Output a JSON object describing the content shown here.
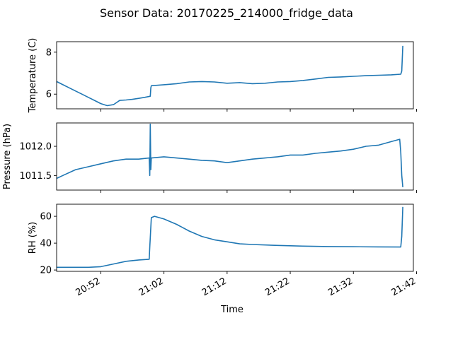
{
  "figure": {
    "title": "Sensor Data: 20170225_214000_fridge_data",
    "xlabel": "Time",
    "x_tick_labels": [
      "20:52",
      "21:02",
      "21:12",
      "21:22",
      "21:32",
      "21:42"
    ],
    "line_color": "#1f77b4"
  },
  "chart_data": [
    {
      "type": "line",
      "ylabel": "Temperature (C)",
      "ylim": [
        5.3,
        8.5
      ],
      "yticks": [
        6,
        8
      ],
      "ytick_labels": [
        "6",
        "8"
      ],
      "xlim": [
        "20:45:00",
        "21:41:30"
      ],
      "series": [
        {
          "x": [
            "20:45:00",
            "20:46:00",
            "20:47:00",
            "20:48:00",
            "20:49:00",
            "20:50:00",
            "20:51:00",
            "20:52:00",
            "20:53:00",
            "20:54:00",
            "20:54:30",
            "20:55:00",
            "20:56:00",
            "20:57:00",
            "20:58:00",
            "20:59:00",
            "20:59:50",
            "20:59:55",
            "21:00:00",
            "21:02:00",
            "21:04:00",
            "21:06:00",
            "21:08:00",
            "21:10:00",
            "21:12:00",
            "21:14:00",
            "21:16:00",
            "21:18:00",
            "21:20:00",
            "21:22:00",
            "21:24:00",
            "21:26:00",
            "21:28:00",
            "21:30:00",
            "21:32:00",
            "21:34:00",
            "21:36:00",
            "21:38:00",
            "21:39:30",
            "21:39:40",
            "21:39:50"
          ],
          "values": [
            6.6,
            6.45,
            6.3,
            6.15,
            6.0,
            5.85,
            5.7,
            5.55,
            5.45,
            5.5,
            5.6,
            5.7,
            5.72,
            5.75,
            5.8,
            5.85,
            5.9,
            6.3,
            6.4,
            6.45,
            6.5,
            6.58,
            6.6,
            6.58,
            6.52,
            6.55,
            6.5,
            6.52,
            6.58,
            6.6,
            6.65,
            6.72,
            6.8,
            6.82,
            6.85,
            6.88,
            6.9,
            6.92,
            6.95,
            7.1,
            8.3
          ]
        }
      ]
    },
    {
      "type": "line",
      "ylabel": "Pressure (hPa)",
      "ylim": [
        1011.25,
        1012.4
      ],
      "yticks": [
        1011.5,
        1012.0
      ],
      "ytick_labels": [
        "1011.5",
        "1012.0"
      ],
      "xlim": [
        "20:45:00",
        "21:41:30"
      ],
      "series": [
        {
          "x": [
            "20:45:00",
            "20:46:00",
            "20:48:00",
            "20:50:00",
            "20:52:00",
            "20:54:00",
            "20:56:00",
            "20:58:00",
            "20:59:40",
            "20:59:45",
            "20:59:50",
            "20:59:55",
            "21:00:00",
            "21:02:00",
            "21:04:00",
            "21:06:00",
            "21:08:00",
            "21:10:00",
            "21:12:00",
            "21:14:00",
            "21:16:00",
            "21:18:00",
            "21:20:00",
            "21:22:00",
            "21:24:00",
            "21:26:00",
            "21:28:00",
            "21:30:00",
            "21:32:00",
            "21:34:00",
            "21:36:00",
            "21:38:00",
            "21:39:20",
            "21:39:30",
            "21:39:40",
            "21:39:50"
          ],
          "values": [
            1011.45,
            1011.5,
            1011.6,
            1011.65,
            1011.7,
            1011.75,
            1011.78,
            1011.78,
            1011.8,
            1011.5,
            1012.38,
            1011.6,
            1011.8,
            1011.82,
            1011.8,
            1011.78,
            1011.76,
            1011.75,
            1011.72,
            1011.75,
            1011.78,
            1011.8,
            1011.82,
            1011.85,
            1011.85,
            1011.88,
            1011.9,
            1011.92,
            1011.95,
            1012.0,
            1012.02,
            1012.08,
            1012.12,
            1011.9,
            1011.5,
            1011.3
          ]
        }
      ]
    },
    {
      "type": "line",
      "ylabel": "RH (%)",
      "ylim": [
        19,
        69
      ],
      "yticks": [
        20,
        40,
        60
      ],
      "ytick_labels": [
        "20",
        "40",
        "60"
      ],
      "xlim": [
        "20:45:00",
        "21:41:30"
      ],
      "series": [
        {
          "x": [
            "20:45:00",
            "20:50:00",
            "20:52:00",
            "20:54:00",
            "20:56:00",
            "20:58:00",
            "20:59:40",
            "20:59:45",
            "21:00:00",
            "21:00:30",
            "21:02:00",
            "21:04:00",
            "21:06:00",
            "21:08:00",
            "21:10:00",
            "21:12:00",
            "21:14:00",
            "21:16:00",
            "21:20:00",
            "21:24:00",
            "21:28:00",
            "21:32:00",
            "21:36:00",
            "21:39:30",
            "21:39:40",
            "21:39:50"
          ],
          "values": [
            22,
            22,
            22.5,
            24.5,
            26.5,
            27.5,
            28,
            37,
            59,
            60,
            58,
            54,
            49,
            45,
            42.5,
            41,
            39.5,
            39,
            38.3,
            37.8,
            37.5,
            37.3,
            37.2,
            37.1,
            45,
            67
          ]
        }
      ]
    }
  ]
}
